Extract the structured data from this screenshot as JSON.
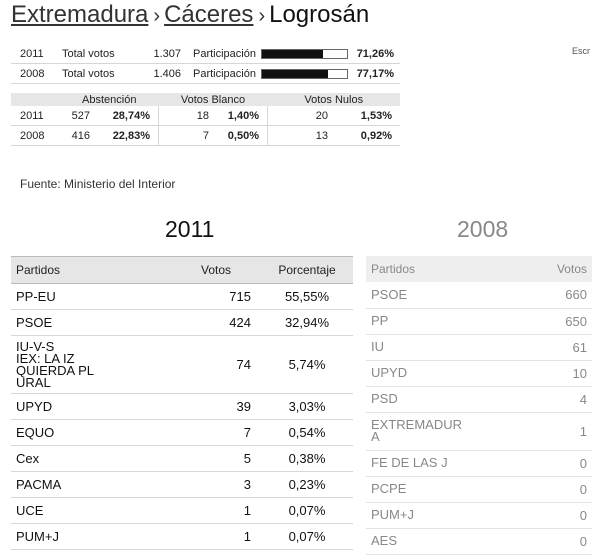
{
  "breadcrumb": {
    "region": "Extremadura",
    "province": "Cáceres",
    "municipality": "Logrosán",
    "separator": "›"
  },
  "summary": [
    {
      "year": "2011",
      "label_total": "Total votos",
      "total": "1.307",
      "label_part": "Participación",
      "participation_pct": "71,26%",
      "participation_value": 71.26
    },
    {
      "year": "2008",
      "label_total": "Total votos",
      "total": "1.406",
      "label_part": "Participación",
      "participation_pct": "77,17%",
      "participation_value": 77.17
    }
  ],
  "truncated_text": "Escr",
  "abstention": {
    "headers": [
      "Abstención",
      "Votos Blanco",
      "Votos Nulos"
    ],
    "rows": [
      {
        "year": "2011",
        "abs_n": "527",
        "abs_p": "28,74%",
        "blank_n": "18",
        "blank_p": "1,40%",
        "null_n": "20",
        "null_p": "1,53%"
      },
      {
        "year": "2008",
        "abs_n": "416",
        "abs_p": "22,83%",
        "blank_n": "7",
        "blank_p": "0,50%",
        "null_n": "13",
        "null_p": "0,92%"
      }
    ]
  },
  "source": "Fuente: Ministerio del Interior",
  "results_2011": {
    "title": "2011",
    "headers": {
      "party": "Partidos",
      "votes": "Votos",
      "pct": "Porcentaje"
    },
    "rows": [
      {
        "party": "PP-EU",
        "votes": "715",
        "pct": "55,55%"
      },
      {
        "party": "PSOE",
        "votes": "424",
        "pct": "32,94%"
      },
      {
        "party": "IU-V-S\nIEX: LA IZ\nQUIERDA PL\nURAL",
        "votes": "74",
        "pct": "5,74%"
      },
      {
        "party": "UPYD",
        "votes": "39",
        "pct": "3,03%"
      },
      {
        "party": "EQUO",
        "votes": "7",
        "pct": "0,54%"
      },
      {
        "party": "Cex",
        "votes": "5",
        "pct": "0,38%"
      },
      {
        "party": "PACMA",
        "votes": "3",
        "pct": "0,23%"
      },
      {
        "party": "UCE",
        "votes": "1",
        "pct": "0,07%"
      },
      {
        "party": "PUM+J",
        "votes": "1",
        "pct": "0,07%"
      }
    ]
  },
  "results_2008": {
    "title": "2008",
    "headers": {
      "party": "Partidos",
      "votes": "Votos"
    },
    "rows": [
      {
        "party": "PSOE",
        "votes": "660"
      },
      {
        "party": "PP",
        "votes": "650"
      },
      {
        "party": "IU",
        "votes": "61"
      },
      {
        "party": "UPYD",
        "votes": "10"
      },
      {
        "party": "PSD",
        "votes": "4"
      },
      {
        "party": "EXTREMADUR\nA",
        "votes": "1"
      },
      {
        "party": "FE DE LAS J",
        "votes": "0"
      },
      {
        "party": "PCPE",
        "votes": "0"
      },
      {
        "party": "PUM+J",
        "votes": "0"
      },
      {
        "party": "AES",
        "votes": "0"
      }
    ]
  }
}
